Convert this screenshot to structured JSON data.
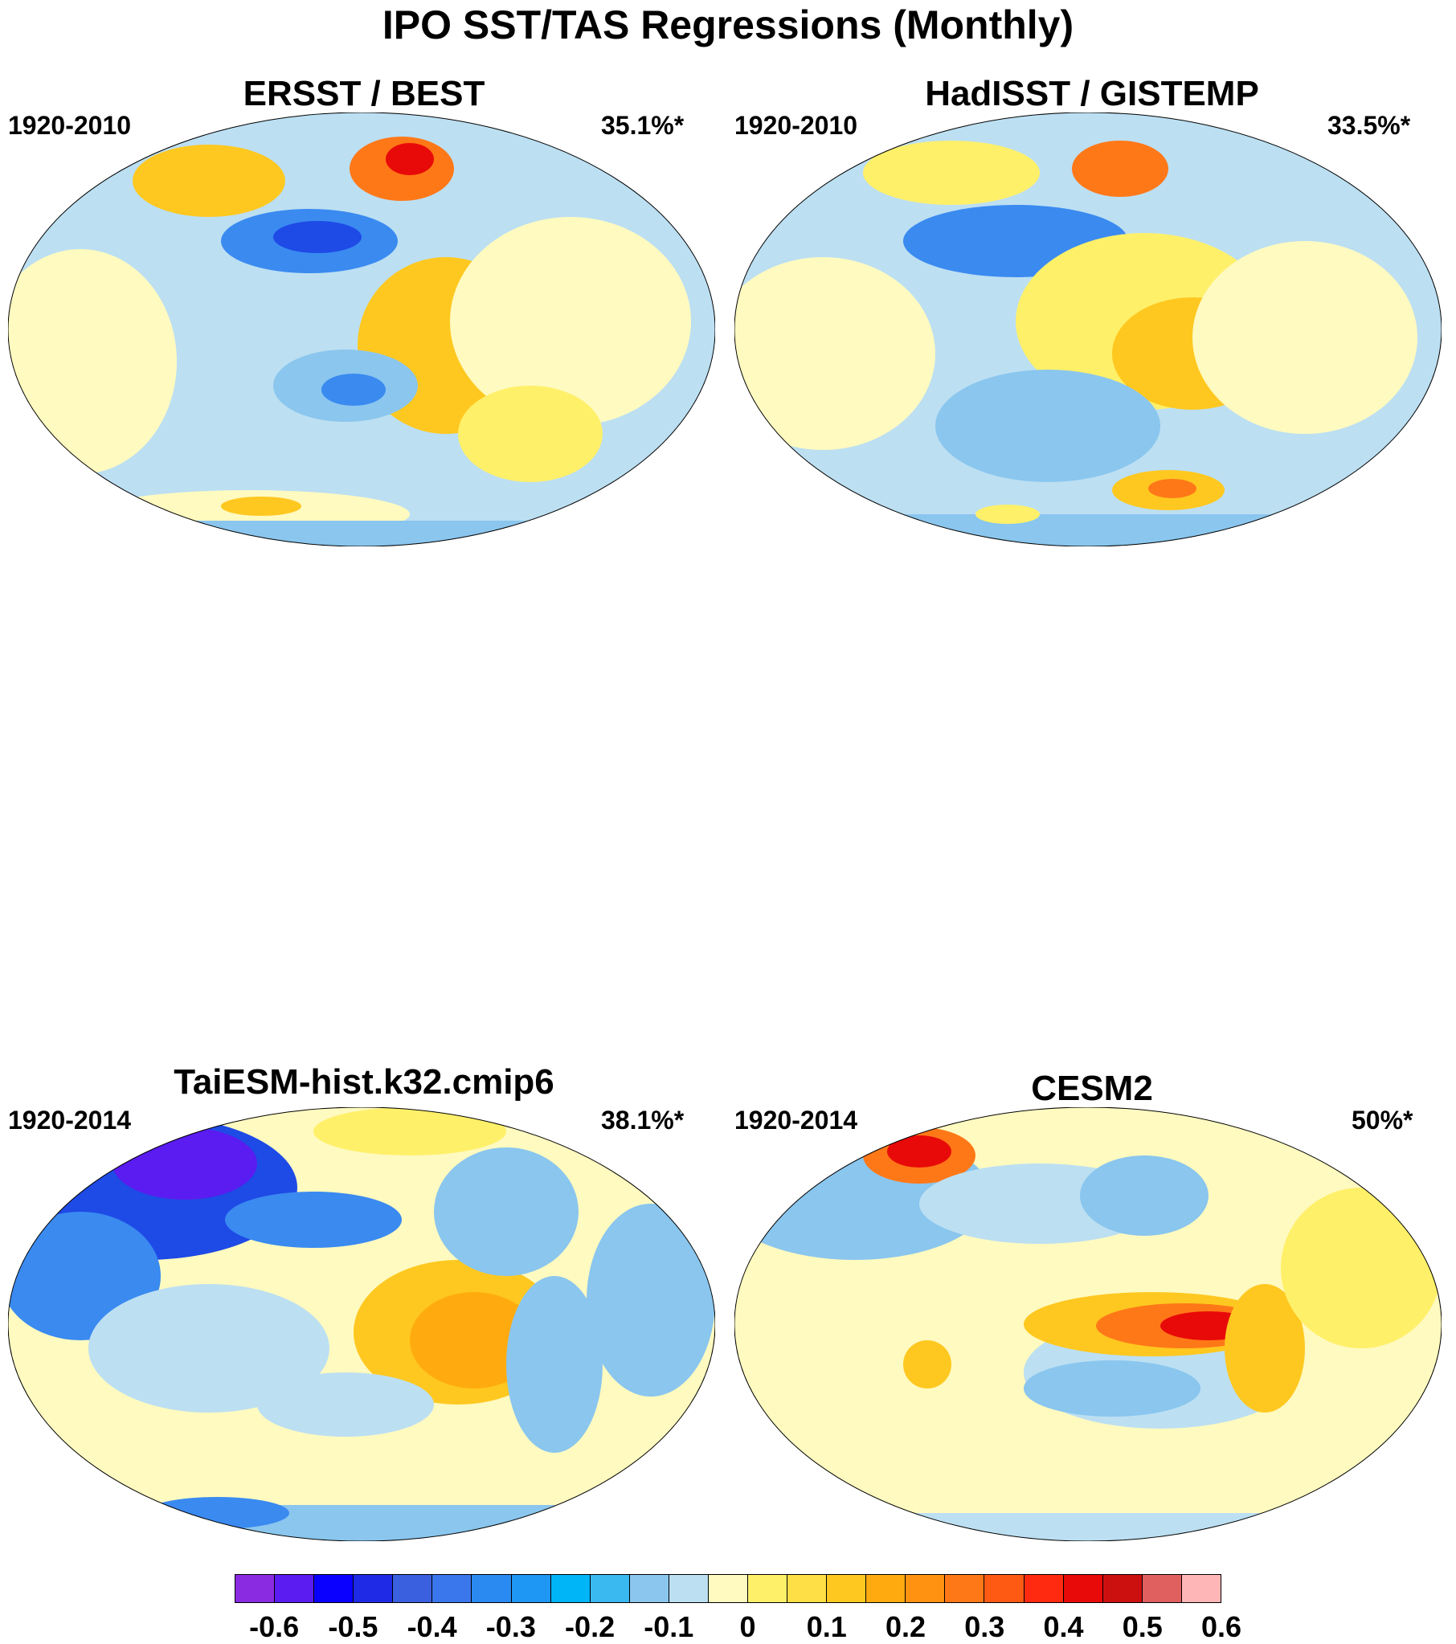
{
  "figure": {
    "title": "IPO SST/TAS Regressions (Monthly)"
  },
  "panels": [
    {
      "title": "ERSST / BEST",
      "period": "1920-2010",
      "variance": "35.1%*"
    },
    {
      "title": "HadISST / GISTEMP",
      "period": "1920-2010",
      "variance": "33.5%*"
    },
    {
      "title": "TaiESM-hist.k32.cmip6",
      "period": "1920-2014",
      "variance": "38.1%*"
    },
    {
      "title": "CESM2",
      "period": "1920-2014",
      "variance": "50%*"
    }
  ],
  "colorbar": {
    "colors": [
      "#8a2be2",
      "#5a1cf0",
      "#0a00ff",
      "#1e2ae6",
      "#3a60e0",
      "#3a76ec",
      "#2a8af2",
      "#1e96f4",
      "#00b4f8",
      "#3ab8f0",
      "#8ac6ee",
      "#bcdff2",
      "#fffac0",
      "#fff06a",
      "#ffdf46",
      "#ffc820",
      "#ffab10",
      "#ff9210",
      "#ff7818",
      "#ff5a14",
      "#ff2a10",
      "#e80a08",
      "#cc1010",
      "#e06060",
      "#ffb6b6"
    ],
    "tick_labels": [
      "-0.6",
      "-0.5",
      "-0.4",
      "-0.3",
      "-0.2",
      "-0.1",
      "0",
      "0.1",
      "0.2",
      "0.3",
      "0.4",
      "0.5",
      "0.6"
    ],
    "tick_values": [
      -0.6,
      -0.5,
      -0.4,
      -0.3,
      -0.2,
      -0.1,
      0,
      0.1,
      0.2,
      0.3,
      0.4,
      0.5,
      0.6
    ],
    "range": [
      -0.65,
      0.65
    ]
  },
  "legend": {
    "base": "#fffac0",
    "neg_light": "#bcdff2",
    "neg_mid": "#8ac6ee",
    "neg_strong": "#3a8af0",
    "neg_deep": "#1e4ae6",
    "neg_violet": "#5a1cf0",
    "pos_light": "#fff06a",
    "pos_mid": "#ffc820",
    "pos_strong": "#ffab10",
    "pos_deep": "#ff7818",
    "pos_red": "#e80a08"
  }
}
